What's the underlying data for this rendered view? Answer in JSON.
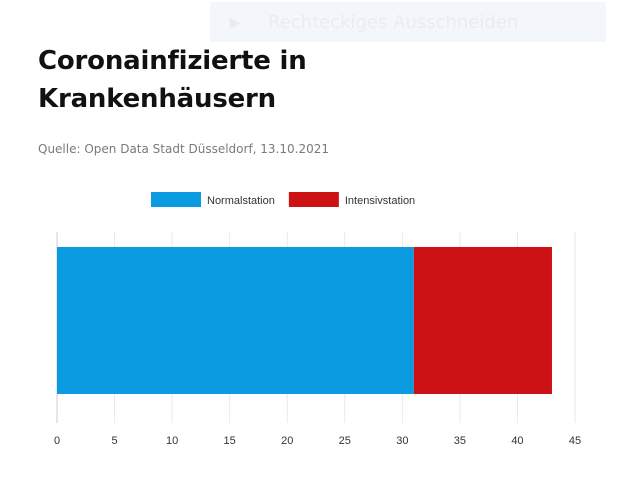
{
  "toolbar": {
    "icon": "play-icon",
    "label": "Rechteckiges Ausschneiden"
  },
  "title": "Coronainfizierte in Krankenhäusern",
  "source": "Quelle: Open Data Stadt Düsseldorf, 13.10.2021",
  "chart_data": {
    "type": "bar",
    "orientation": "horizontal",
    "stacked": true,
    "categories": [
      ""
    ],
    "series": [
      {
        "name": "Normalstation",
        "values": [
          31
        ],
        "color": "#0a9be0"
      },
      {
        "name": "Intensivstation",
        "values": [
          12
        ],
        "color": "#cc1214"
      }
    ],
    "xlim": [
      0,
      45
    ],
    "ticks": [
      0,
      5,
      10,
      15,
      20,
      25,
      30,
      35,
      40,
      45
    ],
    "grid": true,
    "legend": "top-center",
    "title": "",
    "xlabel": "",
    "ylabel": ""
  }
}
